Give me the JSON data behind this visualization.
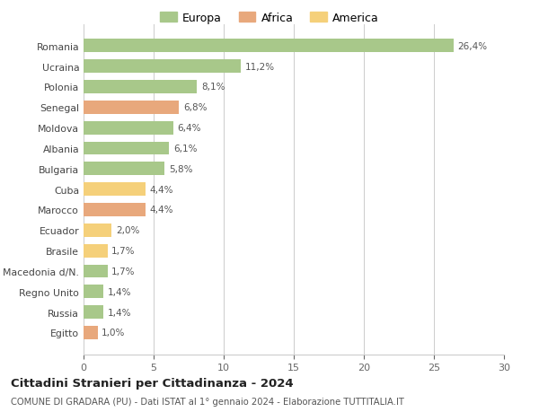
{
  "countries": [
    "Romania",
    "Ucraina",
    "Polonia",
    "Senegal",
    "Moldova",
    "Albania",
    "Bulgaria",
    "Cuba",
    "Marocco",
    "Ecuador",
    "Brasile",
    "Macedonia d/N.",
    "Regno Unito",
    "Russia",
    "Egitto"
  ],
  "values": [
    26.4,
    11.2,
    8.1,
    6.8,
    6.4,
    6.1,
    5.8,
    4.4,
    4.4,
    2.0,
    1.7,
    1.7,
    1.4,
    1.4,
    1.0
  ],
  "labels": [
    "26,4%",
    "11,2%",
    "8,1%",
    "6,8%",
    "6,4%",
    "6,1%",
    "5,8%",
    "4,4%",
    "4,4%",
    "2,0%",
    "1,7%",
    "1,7%",
    "1,4%",
    "1,4%",
    "1,0%"
  ],
  "continents": [
    "Europa",
    "Europa",
    "Europa",
    "Africa",
    "Europa",
    "Europa",
    "Europa",
    "America",
    "Africa",
    "America",
    "America",
    "Europa",
    "Europa",
    "Europa",
    "Africa"
  ],
  "colors": {
    "Europa": "#a8c88a",
    "Africa": "#e8a87c",
    "America": "#f5d07a"
  },
  "title": "Cittadini Stranieri per Cittadinanza - 2024",
  "subtitle": "COMUNE DI GRADARA (PU) - Dati ISTAT al 1° gennaio 2024 - Elaborazione TUTTITALIA.IT",
  "xlim": [
    0,
    30
  ],
  "xticks": [
    0,
    5,
    10,
    15,
    20,
    25,
    30
  ],
  "background_color": "#ffffff",
  "grid_color": "#cccccc"
}
